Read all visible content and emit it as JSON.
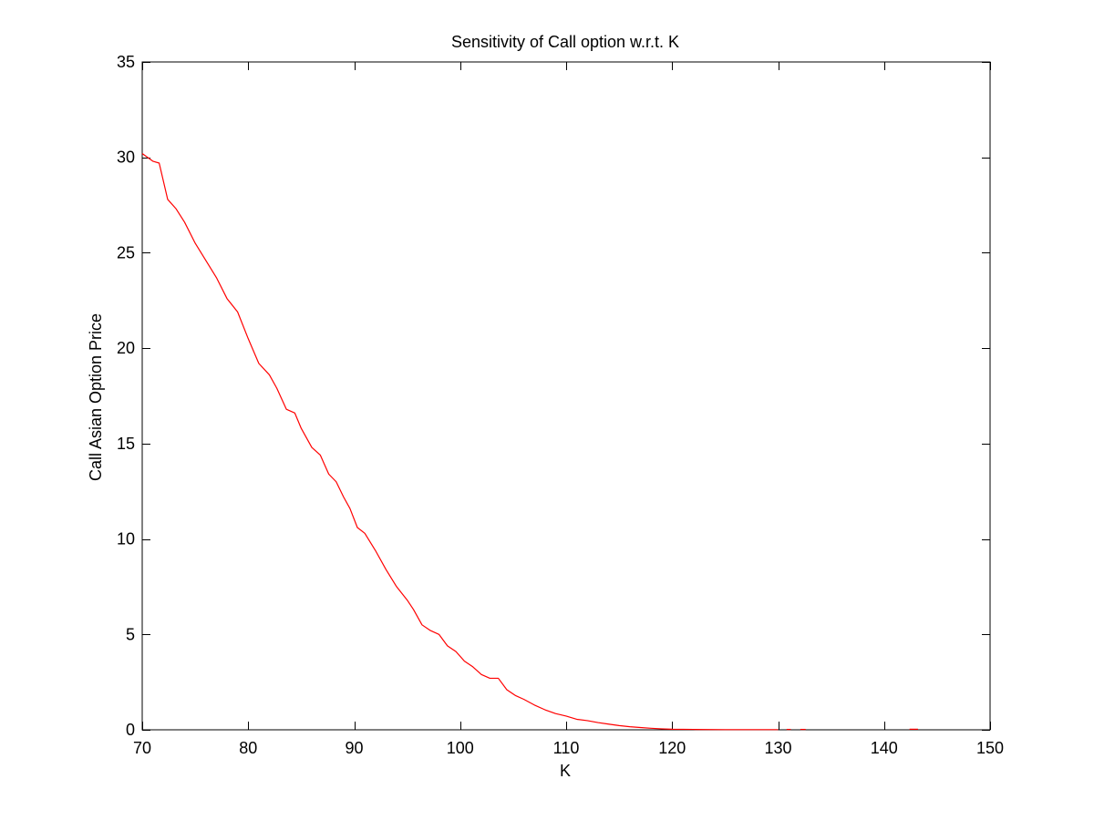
{
  "chart_data": {
    "type": "line",
    "title": "Sensitivity of Call option w.r.t. K",
    "xlabel": "K",
    "ylabel": "Call Asian Option Price",
    "xlim": [
      70,
      150
    ],
    "ylim": [
      0,
      35
    ],
    "xticks": [
      70,
      80,
      90,
      100,
      110,
      120,
      130,
      140,
      150
    ],
    "yticks": [
      0,
      5,
      10,
      15,
      20,
      25,
      30,
      35
    ],
    "grid": false,
    "legend": "none",
    "series": [
      {
        "color": "#ff0000",
        "x": [
          70,
          71,
          71.6,
          72.4,
          73.2,
          74,
          75,
          76,
          77,
          78,
          79,
          80,
          81,
          82,
          82.7,
          83.6,
          84.4,
          85,
          86,
          86.8,
          87.6,
          88.3,
          89,
          89.6,
          90.3,
          91,
          92,
          93,
          94,
          95,
          95.6,
          96.4,
          97.2,
          98,
          98.8,
          99.6,
          100.4,
          101.2,
          102,
          102.8,
          103.6,
          104.4,
          105.2,
          106,
          107,
          108,
          109,
          110,
          111,
          112,
          113,
          114,
          115,
          116,
          117,
          118,
          119,
          120,
          122,
          125,
          130
        ],
        "y": [
          30.2,
          29.8,
          29.7,
          27.8,
          27.3,
          26.6,
          25.5,
          24.6,
          23.7,
          22.6,
          21.9,
          20.5,
          19.2,
          18.6,
          17.9,
          16.8,
          16.6,
          15.8,
          14.8,
          14.4,
          13.4,
          13.0,
          12.2,
          11.6,
          10.6,
          10.3,
          9.4,
          8.4,
          7.5,
          6.8,
          6.3,
          5.5,
          5.2,
          5.0,
          4.4,
          4.1,
          3.6,
          3.3,
          2.9,
          2.7,
          2.7,
          2.1,
          1.8,
          1.6,
          1.3,
          1.05,
          0.85,
          0.72,
          0.55,
          0.48,
          0.38,
          0.3,
          0.22,
          0.16,
          0.12,
          0.08,
          0.05,
          0.03,
          0.02,
          0.01,
          0.01
        ]
      },
      {
        "color": "#ff0000",
        "x": [
          130.8,
          131.2
        ],
        "y": [
          0.02,
          0.02
        ]
      },
      {
        "color": "#ff0000",
        "x": [
          132.1,
          132.6
        ],
        "y": [
          0.02,
          0.02
        ]
      },
      {
        "color": "#ff0000",
        "x": [
          142.4,
          143.2
        ],
        "y": [
          0.03,
          0.03
        ]
      }
    ]
  }
}
